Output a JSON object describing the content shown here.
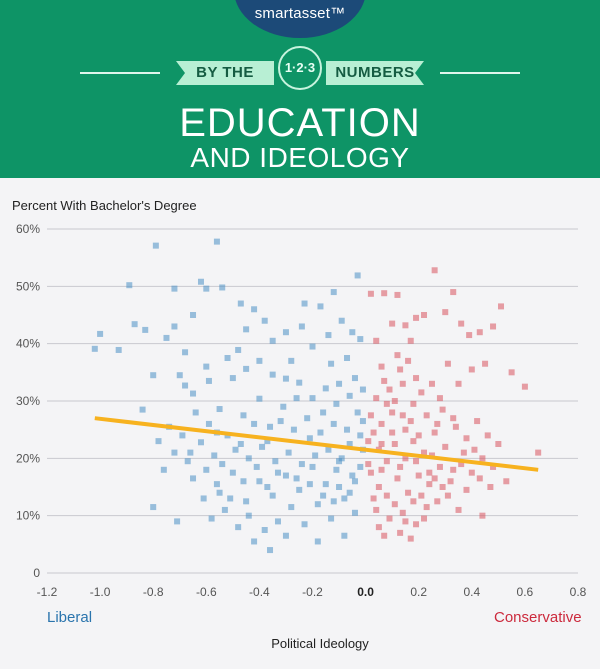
{
  "brand": {
    "logo": "smartasset™"
  },
  "header": {
    "ribbon_left": "BY THE",
    "ribbon_badge": "1·2·3",
    "ribbon_right": "NUMBERS",
    "title_main": "EDUCATION",
    "title_sub": "AND IDEOLOGY"
  },
  "colors": {
    "header_green": "#0e9466",
    "logo_navy": "#1c4a78",
    "liberal_blue": "#2a74ad",
    "conservative_red": "#cc2a3d",
    "trend_orange": "#f7b21f"
  },
  "chart_data": {
    "type": "scatter",
    "ylabel": "Percent With Bachelor's Degree",
    "xlabel": "Political Ideology",
    "xlim": [
      -1.2,
      0.8
    ],
    "ylim": [
      0,
      60
    ],
    "xticks": [
      -1.2,
      -1.0,
      -0.8,
      -0.6,
      -0.4,
      -0.2,
      0.0,
      0.2,
      0.4,
      0.6,
      0.8
    ],
    "xtick_labels": [
      "-1.2",
      "-1.0",
      "-0.8",
      "-0.6",
      "-0.4",
      "-0.2",
      "0.0",
      "0.2",
      "0.4",
      "0.6",
      "0.8"
    ],
    "yticks": [
      0,
      10,
      20,
      30,
      40,
      50,
      60
    ],
    "ytick_labels": [
      "0",
      "10%",
      "20%",
      "30%",
      "40%",
      "50%",
      "60%"
    ],
    "grid": true,
    "annotations": {
      "left": "Liberal",
      "right": "Conservative"
    },
    "trendline": {
      "x": [
        -1.02,
        0.65
      ],
      "y": [
        27,
        18
      ]
    },
    "series": [
      {
        "color": "#4a8fc4",
        "points": [
          [
            -1.02,
            39.1
          ],
          [
            -1.0,
            41.7
          ],
          [
            -0.93,
            38.9
          ],
          [
            -0.89,
            50.2
          ],
          [
            -0.87,
            43.4
          ],
          [
            -0.83,
            42.4
          ],
          [
            -0.79,
            57.1
          ],
          [
            -0.72,
            49.6
          ],
          [
            -0.62,
            50.8
          ],
          [
            -0.6,
            49.6
          ],
          [
            -0.56,
            57.8
          ],
          [
            -0.54,
            49.8
          ],
          [
            -0.68,
            32.7
          ],
          [
            -0.7,
            34.5
          ],
          [
            -0.65,
            31.3
          ],
          [
            -0.59,
            33.5
          ],
          [
            -0.55,
            28.6
          ],
          [
            -0.5,
            34.0
          ],
          [
            -0.48,
            38.9
          ],
          [
            -0.45,
            35.6
          ],
          [
            -0.4,
            30.4
          ],
          [
            -0.35,
            34.6
          ],
          [
            -0.3,
            33.9
          ],
          [
            -0.25,
            33.2
          ],
          [
            -0.2,
            30.5
          ],
          [
            -0.15,
            32.2
          ],
          [
            -0.1,
            33.0
          ],
          [
            -0.06,
            30.9
          ],
          [
            -0.03,
            51.9
          ],
          [
            -0.02,
            40.8
          ],
          [
            -0.47,
            47.0
          ],
          [
            -0.42,
            46.0
          ],
          [
            -0.38,
            44.0
          ],
          [
            -0.3,
            42.0
          ],
          [
            -0.23,
            47.0
          ],
          [
            -0.17,
            46.5
          ],
          [
            -0.12,
            49.0
          ],
          [
            -0.09,
            44.0
          ],
          [
            -0.05,
            42.0
          ],
          [
            -0.65,
            45.0
          ],
          [
            -0.72,
            43.0
          ],
          [
            -0.75,
            41.0
          ],
          [
            -0.8,
            34.5
          ],
          [
            -0.84,
            28.5
          ],
          [
            -0.78,
            23.0
          ],
          [
            -0.74,
            25.5
          ],
          [
            -0.72,
            21.0
          ],
          [
            -0.67,
            19.5
          ],
          [
            -0.62,
            22.8
          ],
          [
            -0.57,
            20.5
          ],
          [
            -0.52,
            24.0
          ],
          [
            -0.47,
            22.5
          ],
          [
            -0.42,
            26.0
          ],
          [
            -0.37,
            23.0
          ],
          [
            -0.32,
            26.5
          ],
          [
            -0.27,
            25.0
          ],
          [
            -0.22,
            27.0
          ],
          [
            -0.17,
            24.5
          ],
          [
            -0.12,
            26.0
          ],
          [
            -0.07,
            25.0
          ],
          [
            -0.02,
            24.0
          ],
          [
            -0.65,
            16.5
          ],
          [
            -0.6,
            18.0
          ],
          [
            -0.55,
            14.0
          ],
          [
            -0.5,
            17.5
          ],
          [
            -0.45,
            12.5
          ],
          [
            -0.4,
            16.0
          ],
          [
            -0.35,
            13.5
          ],
          [
            -0.3,
            17.0
          ],
          [
            -0.25,
            14.5
          ],
          [
            -0.2,
            18.5
          ],
          [
            -0.15,
            15.5
          ],
          [
            -0.1,
            19.5
          ],
          [
            -0.05,
            17.0
          ],
          [
            -0.01,
            21.5
          ],
          [
            -0.58,
            9.5
          ],
          [
            -0.53,
            11.0
          ],
          [
            -0.48,
            8.0
          ],
          [
            -0.44,
            10.0
          ],
          [
            -0.38,
            7.5
          ],
          [
            -0.33,
            9.0
          ],
          [
            -0.28,
            11.5
          ],
          [
            -0.23,
            8.5
          ],
          [
            -0.18,
            12.0
          ],
          [
            -0.13,
            9.5
          ],
          [
            -0.08,
            13.0
          ],
          [
            -0.04,
            10.5
          ],
          [
            -0.42,
            5.5
          ],
          [
            -0.36,
            4.0
          ],
          [
            -0.3,
            6.5
          ],
          [
            -0.18,
            5.5
          ],
          [
            -0.08,
            6.5
          ],
          [
            -0.71,
            9.0
          ],
          [
            -0.8,
            11.5
          ],
          [
            -0.76,
            18.0
          ],
          [
            -0.03,
            28.0
          ],
          [
            -0.06,
            22.5
          ],
          [
            -0.09,
            20.0
          ],
          [
            -0.11,
            18.0
          ],
          [
            -0.14,
            21.5
          ],
          [
            -0.19,
            20.5
          ],
          [
            -0.24,
            19.0
          ],
          [
            -0.29,
            21.0
          ],
          [
            -0.34,
            19.5
          ],
          [
            -0.39,
            22.0
          ],
          [
            -0.44,
            20.0
          ],
          [
            -0.49,
            21.5
          ],
          [
            -0.54,
            19.0
          ],
          [
            -0.59,
            26.0
          ],
          [
            -0.64,
            28.0
          ],
          [
            -0.69,
            24.0
          ],
          [
            -0.31,
            29.0
          ],
          [
            -0.26,
            30.5
          ],
          [
            -0.16,
            28.0
          ],
          [
            -0.11,
            29.5
          ],
          [
            -0.01,
            26.5
          ],
          [
            -0.02,
            18.5
          ],
          [
            -0.04,
            16.0
          ],
          [
            -0.06,
            14.0
          ],
          [
            -0.1,
            15.0
          ],
          [
            -0.12,
            12.5
          ],
          [
            -0.16,
            13.5
          ],
          [
            -0.21,
            15.5
          ],
          [
            -0.26,
            16.5
          ],
          [
            -0.33,
            17.5
          ],
          [
            -0.37,
            15.0
          ],
          [
            -0.41,
            18.5
          ],
          [
            -0.46,
            16.0
          ],
          [
            -0.51,
            13.0
          ],
          [
            -0.56,
            15.5
          ],
          [
            -0.61,
            13.0
          ],
          [
            -0.21,
            23.5
          ],
          [
            -0.36,
            25.5
          ],
          [
            -0.46,
            27.5
          ],
          [
            -0.56,
            24.5
          ],
          [
            -0.66,
            21.0
          ],
          [
            -0.28,
            37.0
          ],
          [
            -0.2,
            39.5
          ],
          [
            -0.35,
            40.5
          ],
          [
            -0.45,
            42.5
          ],
          [
            -0.52,
            37.5
          ],
          [
            -0.6,
            36.0
          ],
          [
            -0.68,
            38.5
          ],
          [
            -0.24,
            43.0
          ],
          [
            -0.14,
            41.5
          ],
          [
            -0.07,
            37.5
          ],
          [
            -0.04,
            34.0
          ],
          [
            -0.01,
            32.0
          ],
          [
            -0.13,
            36.5
          ],
          [
            -0.4,
            37.0
          ]
        ]
      },
      {
        "color": "#d9535f",
        "points": [
          [
            0.02,
            48.7
          ],
          [
            0.04,
            40.5
          ],
          [
            0.06,
            36.0
          ],
          [
            0.07,
            48.8
          ],
          [
            0.1,
            43.5
          ],
          [
            0.12,
            48.5
          ],
          [
            0.15,
            43.2
          ],
          [
            0.17,
            40.5
          ],
          [
            0.19,
            44.5
          ],
          [
            0.22,
            45.0
          ],
          [
            0.26,
            52.8
          ],
          [
            0.3,
            45.5
          ],
          [
            0.33,
            49.0
          ],
          [
            0.36,
            43.5
          ],
          [
            0.39,
            41.5
          ],
          [
            0.43,
            42.0
          ],
          [
            0.48,
            43.0
          ],
          [
            0.51,
            46.5
          ],
          [
            0.55,
            35.0
          ],
          [
            0.6,
            32.5
          ],
          [
            0.31,
            36.5
          ],
          [
            0.35,
            33.0
          ],
          [
            0.4,
            35.5
          ],
          [
            0.45,
            36.5
          ],
          [
            0.28,
            30.5
          ],
          [
            0.25,
            33.0
          ],
          [
            0.21,
            31.5
          ],
          [
            0.18,
            29.5
          ],
          [
            0.14,
            27.5
          ],
          [
            0.1,
            28.0
          ],
          [
            0.06,
            26.0
          ],
          [
            0.03,
            24.5
          ],
          [
            0.01,
            23.0
          ],
          [
            0.05,
            21.5
          ],
          [
            0.08,
            19.5
          ],
          [
            0.11,
            22.5
          ],
          [
            0.15,
            20.0
          ],
          [
            0.18,
            23.0
          ],
          [
            0.22,
            21.0
          ],
          [
            0.26,
            24.5
          ],
          [
            0.3,
            22.0
          ],
          [
            0.34,
            25.5
          ],
          [
            0.38,
            23.5
          ],
          [
            0.42,
            26.5
          ],
          [
            0.46,
            24.0
          ],
          [
            0.5,
            22.5
          ],
          [
            0.65,
            21.0
          ],
          [
            0.02,
            17.5
          ],
          [
            0.05,
            15.0
          ],
          [
            0.08,
            13.5
          ],
          [
            0.12,
            16.5
          ],
          [
            0.16,
            14.0
          ],
          [
            0.2,
            17.0
          ],
          [
            0.24,
            15.5
          ],
          [
            0.28,
            18.5
          ],
          [
            0.32,
            16.0
          ],
          [
            0.36,
            19.0
          ],
          [
            0.4,
            17.5
          ],
          [
            0.44,
            20.0
          ],
          [
            0.48,
            18.5
          ],
          [
            0.47,
            15.0
          ],
          [
            0.53,
            16.0
          ],
          [
            0.04,
            11.0
          ],
          [
            0.09,
            9.5
          ],
          [
            0.14,
            10.5
          ],
          [
            0.19,
            8.5
          ],
          [
            0.23,
            11.5
          ],
          [
            0.27,
            12.5
          ],
          [
            0.31,
            13.5
          ],
          [
            0.35,
            11.0
          ],
          [
            0.44,
            10.0
          ],
          [
            0.07,
            6.5
          ],
          [
            0.13,
            7.0
          ],
          [
            0.17,
            6.0
          ],
          [
            0.09,
            32.0
          ],
          [
            0.13,
            35.5
          ],
          [
            0.19,
            34.0
          ],
          [
            0.23,
            27.5
          ],
          [
            0.27,
            26.0
          ],
          [
            0.04,
            30.5
          ],
          [
            0.07,
            33.5
          ],
          [
            0.12,
            38.0
          ],
          [
            0.16,
            37.0
          ],
          [
            0.29,
            28.5
          ],
          [
            0.33,
            27.0
          ],
          [
            0.01,
            19.0
          ],
          [
            0.03,
            13.0
          ],
          [
            0.06,
            18.0
          ],
          [
            0.1,
            24.5
          ],
          [
            0.13,
            18.5
          ],
          [
            0.17,
            26.5
          ],
          [
            0.21,
            13.5
          ],
          [
            0.25,
            20.5
          ],
          [
            0.29,
            15.0
          ],
          [
            0.38,
            14.5
          ],
          [
            0.41,
            21.5
          ],
          [
            0.11,
            12.0
          ],
          [
            0.15,
            25.0
          ],
          [
            0.19,
            19.5
          ],
          [
            0.24,
            17.5
          ],
          [
            0.02,
            27.5
          ],
          [
            0.06,
            22.5
          ],
          [
            0.08,
            29.5
          ],
          [
            0.11,
            30.0
          ],
          [
            0.14,
            33.0
          ],
          [
            0.2,
            24.0
          ],
          [
            0.26,
            16.5
          ],
          [
            0.33,
            18.0
          ],
          [
            0.37,
            21.0
          ],
          [
            0.43,
            16.5
          ],
          [
            0.18,
            12.5
          ],
          [
            0.22,
            9.5
          ],
          [
            0.05,
            8.0
          ],
          [
            0.15,
            9.0
          ]
        ]
      }
    ]
  }
}
